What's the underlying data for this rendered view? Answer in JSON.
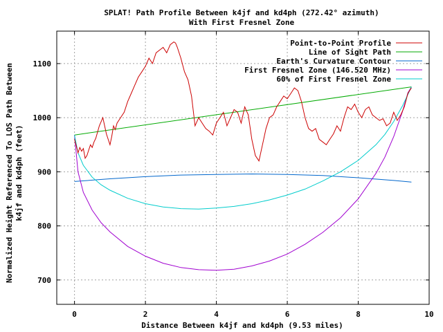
{
  "chart_data": {
    "type": "line",
    "title": "SPLAT! Path Profile Between k4jf and kd4ph (272.42° azimuth)",
    "subtitle": "With First Fresnel Zone",
    "xlabel": "Distance Between k4jf and kd4ph (9.53 miles)",
    "ylabel_line1": "Normalized Height Referenced To LOS Path Between",
    "ylabel_line2": "k4jf and kd4ph (feet)",
    "xlim": [
      -0.5,
      10
    ],
    "ylim": [
      655,
      1160
    ],
    "xticks": [
      "0",
      "2",
      "4",
      "6",
      "8",
      "10"
    ],
    "xtick_values": [
      0,
      2,
      4,
      6,
      8,
      10
    ],
    "yticks": [
      "700",
      "800",
      "900",
      "1000",
      "1100"
    ],
    "ytick_values": [
      700,
      800,
      900,
      1000,
      1100
    ],
    "grid": true,
    "legend_position": "top-right",
    "series": [
      {
        "name": "Point-to-Point Profile",
        "color": "#cc0000",
        "x": [
          0,
          0.05,
          0.1,
          0.15,
          0.2,
          0.25,
          0.3,
          0.35,
          0.4,
          0.45,
          0.5,
          0.55,
          0.6,
          0.7,
          0.8,
          0.9,
          1.0,
          1.05,
          1.1,
          1.15,
          1.2,
          1.3,
          1.4,
          1.5,
          1.6,
          1.7,
          1.8,
          1.9,
          2.0,
          2.1,
          2.2,
          2.3,
          2.4,
          2.5,
          2.6,
          2.7,
          2.8,
          2.85,
          2.9,
          3.0,
          3.1,
          3.2,
          3.3,
          3.4,
          3.5,
          3.6,
          3.7,
          3.8,
          3.9,
          4.0,
          4.1,
          4.2,
          4.3,
          4.4,
          4.5,
          4.6,
          4.7,
          4.8,
          4.9,
          5.0,
          5.1,
          5.2,
          5.3,
          5.4,
          5.5,
          5.6,
          5.7,
          5.8,
          5.9,
          6.0,
          6.1,
          6.2,
          6.3,
          6.4,
          6.5,
          6.6,
          6.7,
          6.8,
          6.9,
          7.0,
          7.1,
          7.2,
          7.3,
          7.4,
          7.5,
          7.6,
          7.7,
          7.8,
          7.9,
          8.0,
          8.1,
          8.2,
          8.3,
          8.4,
          8.5,
          8.6,
          8.7,
          8.8,
          8.9,
          9.0,
          9.1,
          9.2,
          9.3,
          9.4,
          9.45,
          9.5
        ],
        "values": [
          960,
          948,
          935,
          945,
          938,
          943,
          925,
          930,
          940,
          950,
          945,
          955,
          962,
          985,
          1000,
          970,
          950,
          965,
          985,
          978,
          990,
          1000,
          1010,
          1030,
          1045,
          1060,
          1075,
          1085,
          1095,
          1110,
          1100,
          1120,
          1125,
          1130,
          1120,
          1135,
          1140,
          1138,
          1130,
          1110,
          1085,
          1070,
          1040,
          985,
          1000,
          990,
          980,
          975,
          968,
          990,
          1000,
          1010,
          985,
          1000,
          1015,
          1010,
          990,
          1020,
          1005,
          960,
          930,
          920,
          950,
          980,
          1000,
          1005,
          1020,
          1030,
          1040,
          1035,
          1045,
          1055,
          1050,
          1030,
          1000,
          980,
          975,
          980,
          960,
          955,
          950,
          960,
          970,
          985,
          975,
          1000,
          1020,
          1015,
          1025,
          1010,
          1000,
          1015,
          1020,
          1005,
          1000,
          995,
          998,
          985,
          990,
          1010,
          995,
          1005,
          1020,
          1045,
          1050,
          1055
        ]
      },
      {
        "name": "Line of Sight Path",
        "color": "#00aa00",
        "x": [
          0,
          9.5
        ],
        "values": [
          968,
          1057
        ]
      },
      {
        "name": "Earth's Curvature Contour",
        "color": "#0066cc",
        "x": [
          0,
          1,
          2,
          3,
          4,
          5,
          6,
          7,
          8,
          9,
          9.5
        ],
        "values": [
          882,
          887,
          891,
          894,
          895,
          896,
          895,
          893,
          889,
          884,
          881
        ]
      },
      {
        "name": "First Fresnel Zone (146.520 MHz)",
        "color": "#a000d0",
        "x": [
          0,
          0.1,
          0.25,
          0.5,
          0.75,
          1,
          1.5,
          2,
          2.5,
          3,
          3.5,
          4,
          4.5,
          5,
          5.5,
          6,
          6.5,
          7,
          7.5,
          8,
          8.5,
          8.75,
          9,
          9.25,
          9.4,
          9.5
        ],
        "values": [
          968,
          900,
          862,
          829,
          806,
          789,
          762,
          744,
          731,
          723,
          719,
          718,
          720,
          726,
          735,
          748,
          766,
          788,
          815,
          850,
          897,
          927,
          965,
          1012,
          1046,
          1057
        ]
      },
      {
        "name": "60% of First Fresnel Zone",
        "color": "#00cccc",
        "x": [
          0,
          0.1,
          0.25,
          0.5,
          0.75,
          1,
          1.5,
          2,
          2.5,
          3,
          3.5,
          4,
          4.5,
          5,
          5.5,
          6,
          6.5,
          7,
          7.5,
          8,
          8.5,
          8.75,
          9,
          9.25,
          9.4,
          9.5
        ],
        "values": [
          968,
          935,
          912,
          890,
          876,
          866,
          851,
          841,
          835,
          832,
          831,
          833,
          836,
          841,
          848,
          857,
          868,
          883,
          900,
          921,
          950,
          969,
          993,
          1022,
          1043,
          1057
        ]
      }
    ]
  }
}
